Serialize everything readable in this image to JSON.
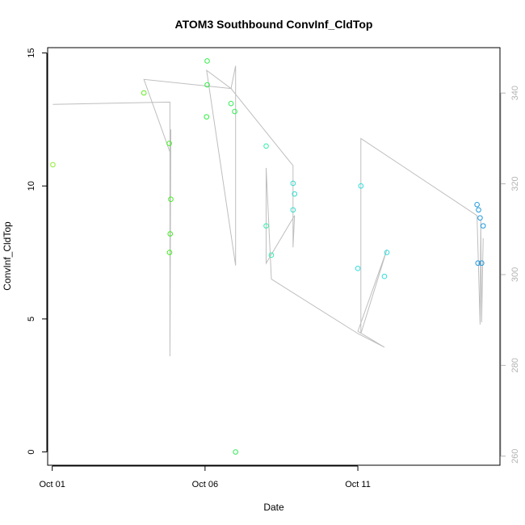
{
  "chart_data": {
    "type": "scatter",
    "title": "ATOM3 Southbound ConvInf_CldTop",
    "xlabel": "Date",
    "ylabel": "ConvInf_CldTop",
    "x_ticks": [
      "Oct 01",
      "Oct 06",
      "Oct 11"
    ],
    "x_tick_days": [
      1,
      6,
      11
    ],
    "xlim_days": [
      0.85,
      15.65
    ],
    "ylim": [
      -0.5,
      15.2
    ],
    "y_ticks": [
      0,
      5,
      10,
      15
    ],
    "y2_ticks": [
      260,
      280,
      300,
      320,
      340
    ],
    "y2lim": [
      258,
      350
    ],
    "grid": false,
    "legend": "none",
    "line_color": "#bebebe",
    "right_axis_color": "#b4b4b4",
    "points": [
      {
        "day": 1.02,
        "y": 10.8,
        "color": "#90ee30"
      },
      {
        "day": 4.0,
        "y": 13.5,
        "color": "#66ee22"
      },
      {
        "day": 4.83,
        "y": 11.6,
        "color": "#44ee22"
      },
      {
        "day": 4.88,
        "y": 9.5,
        "color": "#44ee22"
      },
      {
        "day": 4.86,
        "y": 8.2,
        "color": "#44ee22"
      },
      {
        "day": 4.84,
        "y": 7.5,
        "color": "#44ee22"
      },
      {
        "day": 6.07,
        "y": 14.7,
        "color": "#33ee44"
      },
      {
        "day": 6.07,
        "y": 13.8,
        "color": "#33ee44"
      },
      {
        "day": 6.05,
        "y": 12.6,
        "color": "#33ee44"
      },
      {
        "day": 6.85,
        "y": 13.1,
        "color": "#33ee55"
      },
      {
        "day": 6.97,
        "y": 12.8,
        "color": "#33ee55"
      },
      {
        "day": 7.0,
        "y": 0.0,
        "color": "#33ee55"
      },
      {
        "day": 8.0,
        "y": 11.5,
        "color": "#33eeaa"
      },
      {
        "day": 8.0,
        "y": 8.5,
        "color": "#33eeaa"
      },
      {
        "day": 8.17,
        "y": 7.4,
        "color": "#33eeaa"
      },
      {
        "day": 8.88,
        "y": 10.1,
        "color": "#33ddcc"
      },
      {
        "day": 8.93,
        "y": 9.7,
        "color": "#33ddcc"
      },
      {
        "day": 8.88,
        "y": 9.1,
        "color": "#33ddcc"
      },
      {
        "day": 11.1,
        "y": 10.0,
        "color": "#33dddd"
      },
      {
        "day": 11.0,
        "y": 6.9,
        "color": "#33dddd"
      },
      {
        "day": 11.95,
        "y": 7.5,
        "color": "#33dddd"
      },
      {
        "day": 11.87,
        "y": 6.6,
        "color": "#33dddd"
      },
      {
        "day": 14.9,
        "y": 9.3,
        "color": "#2299dd"
      },
      {
        "day": 14.95,
        "y": 9.1,
        "color": "#2299dd"
      },
      {
        "day": 15.0,
        "y": 8.8,
        "color": "#2299dd"
      },
      {
        "day": 15.1,
        "y": 8.5,
        "color": "#2299dd"
      },
      {
        "day": 14.93,
        "y": 7.1,
        "color": "#2299dd"
      },
      {
        "day": 15.05,
        "y": 7.1,
        "color": "#2299dd"
      }
    ],
    "line_y2": [
      {
        "day": 1.02,
        "y2": 337.5
      },
      {
        "day": 4.85,
        "y2": 338.0
      },
      {
        "day": 4.85,
        "y2": 282.0
      },
      {
        "day": 4.88,
        "y2": 332.0
      },
      {
        "day": 4.85,
        "y2": 327.0
      },
      {
        "day": 4.0,
        "y2": 343.0
      },
      {
        "day": 6.85,
        "y2": 341.0
      },
      {
        "day": 6.05,
        "y2": 345.0
      },
      {
        "day": 7.0,
        "y2": 302.0
      },
      {
        "day": 7.0,
        "y2": 346.0
      },
      {
        "day": 6.85,
        "y2": 341.0
      },
      {
        "day": 8.88,
        "y2": 324.0
      },
      {
        "day": 8.88,
        "y2": 306.0
      },
      {
        "day": 8.93,
        "y2": 313.0
      },
      {
        "day": 8.0,
        "y2": 302.5
      },
      {
        "day": 8.0,
        "y2": 323.5
      },
      {
        "day": 8.17,
        "y2": 299.0
      },
      {
        "day": 11.0,
        "y2": 287.0
      },
      {
        "day": 11.87,
        "y2": 284.0
      },
      {
        "day": 11.0,
        "y2": 287.5
      },
      {
        "day": 11.95,
        "y2": 305.5
      },
      {
        "day": 11.1,
        "y2": 287.0
      },
      {
        "day": 11.1,
        "y2": 330.0
      },
      {
        "day": 14.9,
        "y2": 313.0
      },
      {
        "day": 15.0,
        "y2": 289.0
      },
      {
        "day": 15.02,
        "y2": 312.0
      },
      {
        "day": 15.05,
        "y2": 289.5
      },
      {
        "day": 15.1,
        "y2": 308.0
      }
    ]
  }
}
